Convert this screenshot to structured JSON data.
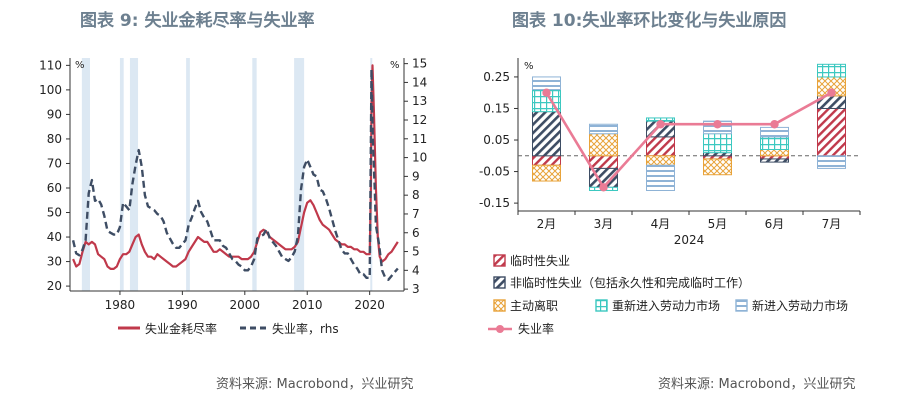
{
  "left": {
    "title": "图表 9:  失业金耗尽率与失业率",
    "source": "资料来源: Macrobond，兴业研究",
    "chart_data": {
      "type": "line",
      "left_unit": "%",
      "right_unit": "%",
      "left_ticks": [
        20,
        30,
        40,
        50,
        60,
        70,
        80,
        90,
        100,
        110
      ],
      "right_ticks": [
        3,
        4,
        5,
        6,
        7,
        8,
        9,
        10,
        11,
        12,
        13,
        14,
        15
      ],
      "x_ticks": [
        1980,
        1990,
        2000,
        2010,
        2020
      ],
      "ylim_left": [
        18,
        113
      ],
      "ylim_right": [
        2.9,
        15.3
      ],
      "xlim": [
        1972,
        2025.5
      ],
      "recessions": [
        [
          1973.9,
          1975.2
        ],
        [
          1980.0,
          1980.6
        ],
        [
          1981.6,
          1982.9
        ],
        [
          1990.6,
          1991.2
        ],
        [
          2001.2,
          2001.9
        ],
        [
          2007.9,
          2009.5
        ],
        [
          2020.1,
          2020.4
        ]
      ],
      "series": [
        {
          "name": "失业金耗尽率",
          "color": "#c0394b",
          "axis": "left",
          "dash": false,
          "points": [
            [
              1972.5,
              31
            ],
            [
              1973,
              28
            ],
            [
              1973.5,
              29
            ],
            [
              1974,
              34
            ],
            [
              1974.5,
              38
            ],
            [
              1975,
              37
            ],
            [
              1975.5,
              38
            ],
            [
              1976,
              37
            ],
            [
              1976.5,
              33
            ],
            [
              1977,
              32
            ],
            [
              1977.5,
              31
            ],
            [
              1978,
              28
            ],
            [
              1978.5,
              27
            ],
            [
              1979,
              27
            ],
            [
              1979.5,
              28
            ],
            [
              1980,
              31
            ],
            [
              1980.5,
              33
            ],
            [
              1981,
              33
            ],
            [
              1981.5,
              34
            ],
            [
              1982,
              37
            ],
            [
              1982.5,
              40
            ],
            [
              1983,
              41
            ],
            [
              1983.5,
              37
            ],
            [
              1984,
              34
            ],
            [
              1984.5,
              32
            ],
            [
              1985,
              32
            ],
            [
              1985.5,
              31
            ],
            [
              1986,
              33
            ],
            [
              1986.5,
              32
            ],
            [
              1987,
              31
            ],
            [
              1987.5,
              30
            ],
            [
              1988,
              29
            ],
            [
              1988.5,
              28
            ],
            [
              1989,
              28
            ],
            [
              1989.5,
              29
            ],
            [
              1990,
              30
            ],
            [
              1990.5,
              31
            ],
            [
              1991,
              34
            ],
            [
              1991.5,
              36
            ],
            [
              1992,
              38
            ],
            [
              1992.5,
              40
            ],
            [
              1993,
              39
            ],
            [
              1993.5,
              38
            ],
            [
              1994,
              38
            ],
            [
              1994.5,
              36
            ],
            [
              1995,
              34
            ],
            [
              1995.5,
              34
            ],
            [
              1996,
              35
            ],
            [
              1996.5,
              34
            ],
            [
              1997,
              33
            ],
            [
              1997.5,
              32
            ],
            [
              1998,
              32
            ],
            [
              1998.5,
              32
            ],
            [
              1999,
              32
            ],
            [
              1999.5,
              31
            ],
            [
              2000,
              31
            ],
            [
              2000.5,
              31
            ],
            [
              2001,
              32
            ],
            [
              2001.5,
              34
            ],
            [
              2002,
              38
            ],
            [
              2002.5,
              42
            ],
            [
              2003,
              43
            ],
            [
              2003.5,
              42
            ],
            [
              2004,
              40
            ],
            [
              2004.5,
              39
            ],
            [
              2005,
              38
            ],
            [
              2005.5,
              37
            ],
            [
              2006,
              36
            ],
            [
              2006.5,
              35
            ],
            [
              2007,
              35
            ],
            [
              2007.5,
              35
            ],
            [
              2008,
              36
            ],
            [
              2008.5,
              38
            ],
            [
              2009,
              44
            ],
            [
              2009.5,
              50
            ],
            [
              2010,
              54
            ],
            [
              2010.5,
              55
            ],
            [
              2011,
              53
            ],
            [
              2011.5,
              50
            ],
            [
              2012,
              47
            ],
            [
              2012.5,
              45
            ],
            [
              2013,
              44
            ],
            [
              2013.5,
              43
            ],
            [
              2014,
              41
            ],
            [
              2014.5,
              39
            ],
            [
              2015,
              38
            ],
            [
              2015.5,
              37
            ],
            [
              2016,
              37
            ],
            [
              2016.5,
              36
            ],
            [
              2017,
              36
            ],
            [
              2017.5,
              35
            ],
            [
              2018,
              35
            ],
            [
              2018.5,
              34
            ],
            [
              2019,
              34
            ],
            [
              2019.5,
              33
            ],
            [
              2020,
              33
            ],
            [
              2020.2,
              60
            ],
            [
              2020.3,
              95
            ],
            [
              2020.45,
              110
            ],
            [
              2020.7,
              90
            ],
            [
              2021,
              60
            ],
            [
              2021.3,
              40
            ],
            [
              2021.6,
              32
            ],
            [
              2022,
              30
            ],
            [
              2022.5,
              31
            ],
            [
              2023,
              33
            ],
            [
              2023.5,
              34
            ],
            [
              2024,
              36
            ],
            [
              2024.5,
              38
            ]
          ]
        },
        {
          "name": "失业率，rhs",
          "color": "#3e4d64",
          "axis": "right",
          "dash": true,
          "points": [
            [
              1972.5,
              5.6
            ],
            [
              1973,
              4.9
            ],
            [
              1973.5,
              4.8
            ],
            [
              1974,
              5.1
            ],
            [
              1974.5,
              5.6
            ],
            [
              1975,
              8.1
            ],
            [
              1975.5,
              8.8
            ],
            [
              1976,
              7.7
            ],
            [
              1976.5,
              7.8
            ],
            [
              1977,
              7.5
            ],
            [
              1977.5,
              6.9
            ],
            [
              1978,
              6.1
            ],
            [
              1978.5,
              6.0
            ],
            [
              1979,
              5.9
            ],
            [
              1979.5,
              5.9
            ],
            [
              1980,
              6.3
            ],
            [
              1980.5,
              7.6
            ],
            [
              1981,
              7.4
            ],
            [
              1981.5,
              7.2
            ],
            [
              1982,
              8.6
            ],
            [
              1982.5,
              9.6
            ],
            [
              1983,
              10.4
            ],
            [
              1983.5,
              9.5
            ],
            [
              1984,
              8.0
            ],
            [
              1984.5,
              7.4
            ],
            [
              1985,
              7.3
            ],
            [
              1985.5,
              7.2
            ],
            [
              1986,
              7.0
            ],
            [
              1986.5,
              6.9
            ],
            [
              1987,
              6.6
            ],
            [
              1987.5,
              6.0
            ],
            [
              1988,
              5.7
            ],
            [
              1988.5,
              5.4
            ],
            [
              1989,
              5.2
            ],
            [
              1989.5,
              5.2
            ],
            [
              1990,
              5.4
            ],
            [
              1990.5,
              5.6
            ],
            [
              1991,
              6.4
            ],
            [
              1991.5,
              6.8
            ],
            [
              1992,
              7.3
            ],
            [
              1992.5,
              7.7
            ],
            [
              1993,
              7.1
            ],
            [
              1993.5,
              6.8
            ],
            [
              1994,
              6.6
            ],
            [
              1994.5,
              6.1
            ],
            [
              1995,
              5.6
            ],
            [
              1995.5,
              5.6
            ],
            [
              1996,
              5.6
            ],
            [
              1996.5,
              5.3
            ],
            [
              1997,
              5.2
            ],
            [
              1997.5,
              4.9
            ],
            [
              1998,
              4.6
            ],
            [
              1998.5,
              4.5
            ],
            [
              1999,
              4.3
            ],
            [
              1999.5,
              4.2
            ],
            [
              2000,
              4.0
            ],
            [
              2000.5,
              4.0
            ],
            [
              2001,
              4.2
            ],
            [
              2001.5,
              4.6
            ],
            [
              2002,
              5.7
            ],
            [
              2002.5,
              5.8
            ],
            [
              2003,
              5.9
            ],
            [
              2003.5,
              6.2
            ],
            [
              2004,
              5.7
            ],
            [
              2004.5,
              5.5
            ],
            [
              2005,
              5.3
            ],
            [
              2005.5,
              5.0
            ],
            [
              2006,
              4.7
            ],
            [
              2006.5,
              4.6
            ],
            [
              2007,
              4.5
            ],
            [
              2007.5,
              4.7
            ],
            [
              2008,
              5.0
            ],
            [
              2008.5,
              5.8
            ],
            [
              2009,
              8.3
            ],
            [
              2009.5,
              9.5
            ],
            [
              2010,
              9.9
            ],
            [
              2010.5,
              9.5
            ],
            [
              2011,
              9.1
            ],
            [
              2011.5,
              9.0
            ],
            [
              2012,
              8.3
            ],
            [
              2012.5,
              8.2
            ],
            [
              2013,
              7.8
            ],
            [
              2013.5,
              7.3
            ],
            [
              2014,
              6.7
            ],
            [
              2014.5,
              6.1
            ],
            [
              2015,
              5.6
            ],
            [
              2015.5,
              5.1
            ],
            [
              2016,
              4.9
            ],
            [
              2016.5,
              4.9
            ],
            [
              2017,
              4.6
            ],
            [
              2017.5,
              4.3
            ],
            [
              2018,
              4.1
            ],
            [
              2018.5,
              3.8
            ],
            [
              2019,
              3.8
            ],
            [
              2019.5,
              3.6
            ],
            [
              2020,
              3.6
            ],
            [
              2020.3,
              14.7
            ],
            [
              2020.5,
              11.0
            ],
            [
              2020.8,
              8.4
            ],
            [
              2021,
              6.4
            ],
            [
              2021.5,
              5.4
            ],
            [
              2022,
              4.0
            ],
            [
              2022.5,
              3.6
            ],
            [
              2023,
              3.5
            ],
            [
              2023.5,
              3.7
            ],
            [
              2024,
              3.9
            ],
            [
              2024.5,
              4.1
            ]
          ]
        }
      ],
      "legend": [
        "失业金耗尽率",
        "失业率，rhs"
      ]
    }
  },
  "right": {
    "title": "图表 10:失业率环比变化与失业原因",
    "source": "资料来源: Macrobond，兴业研究",
    "chart_data": {
      "type": "bar",
      "stacked": true,
      "unit": "%",
      "categories": [
        "2月",
        "3月",
        "4月",
        "5月",
        "6月",
        "7月"
      ],
      "year_label": "2024",
      "y_ticks": [
        "0.25",
        "0.15",
        "0.05",
        "-0.05",
        "-0.15"
      ],
      "ylim": [
        -0.175,
        0.31
      ],
      "series": [
        {
          "name": "临时性失业",
          "color": "#c0394b",
          "values": [
            -0.03,
            -0.04,
            0.06,
            -0.01,
            -0.01,
            0.15
          ]
        },
        {
          "name": "非临时性失业（包括永久性和完成临时工作）",
          "color": "#3e4d64",
          "values": [
            0.14,
            -0.06,
            0.05,
            0.01,
            -0.01,
            0.04
          ]
        },
        {
          "name": "主动离职",
          "color": "#e8a33a",
          "values": [
            -0.05,
            0.07,
            -0.03,
            -0.05,
            0.02,
            0.06
          ]
        },
        {
          "name": "重新进入劳动力市场",
          "color": "#3cc8c0",
          "values": [
            0.07,
            -0.01,
            0.01,
            0.06,
            0.04,
            0.04
          ]
        },
        {
          "name": "新进入劳动力市场",
          "color": "#8fb3d6",
          "values": [
            0.04,
            0.03,
            -0.08,
            0.04,
            0.03,
            -0.04
          ]
        }
      ],
      "line": {
        "name": "失业率",
        "color": "#ea7b95",
        "values": [
          0.2,
          -0.1,
          0.1,
          0.1,
          0.1,
          0.2
        ]
      }
    }
  }
}
